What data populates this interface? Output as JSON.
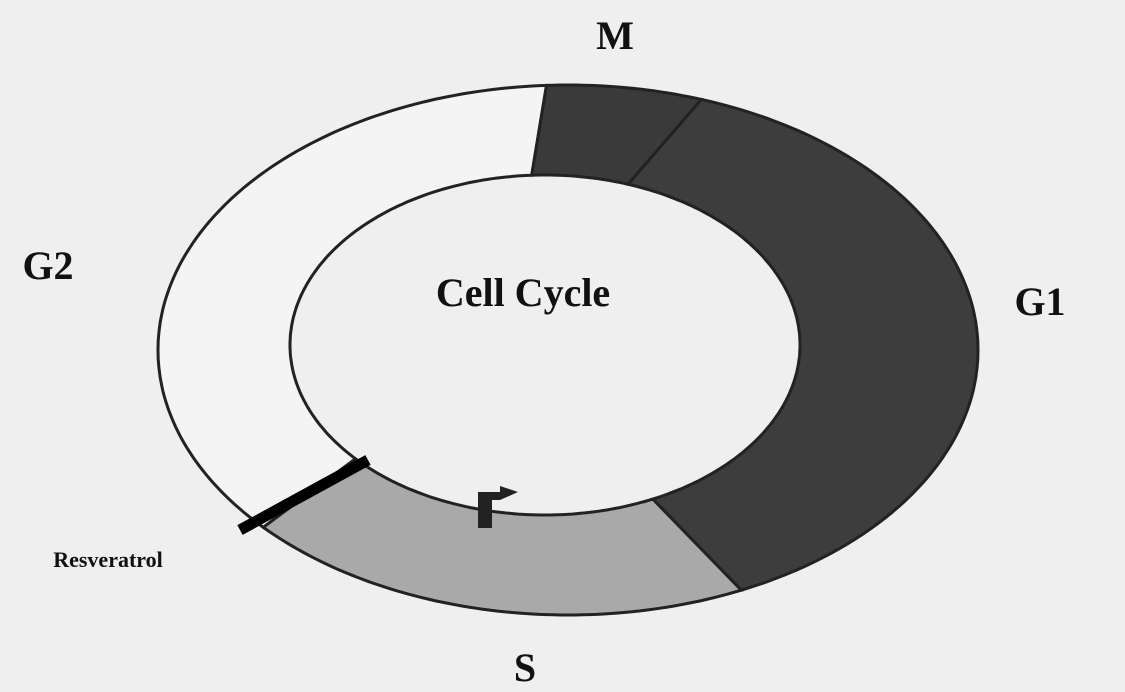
{
  "title": "Cell Cycle",
  "phases": {
    "M": "M",
    "G1": "G1",
    "S": "S",
    "G2": "G2"
  },
  "inhibitor": "Resveratrol"
}
